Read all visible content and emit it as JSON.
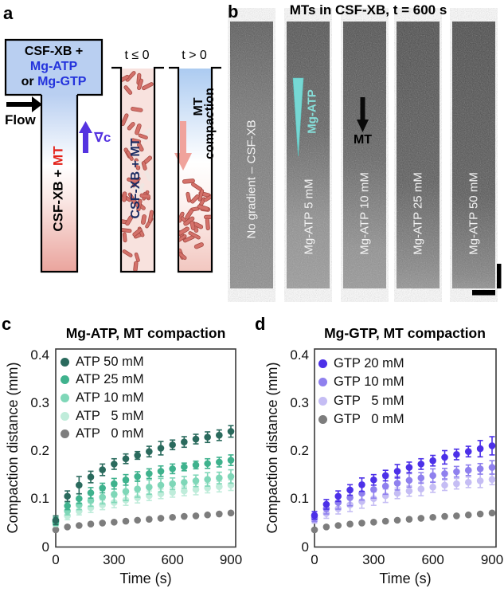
{
  "colors": {
    "reservoir_fill": "#b9cff1",
    "nucleotide_blue": "#2433dc",
    "mt_red": "#e32119",
    "gradient_arrow_violet": "#5533e0",
    "rod_fill": "#d4716a",
    "rod_stroke": "#a54a43",
    "mid_channel_bg": "#f8e2de",
    "mid_label_navy": "#1b2c63",
    "compaction_arrow_pink": "#f0a39c",
    "cyan_annotation": "#76d8d4",
    "strip_label_white": "#f2f2f2"
  },
  "panel_a": {
    "label": "a",
    "reservoir": {
      "line1": "CSF-XB +",
      "line2": "Mg-ATP",
      "line3_prefix": "or ",
      "line3_value": "Mg-GTP"
    },
    "flow_label": "Flow",
    "gradient_label": "∇c",
    "main_channel_prefix": "CSF-XB + ",
    "main_channel_mt": "MT",
    "t_before": "t ≤ 0",
    "t_after": "t > 0",
    "mid_channel_label": "CSF-XB + MT",
    "after_line1": "MT",
    "after_line2": "compaction"
  },
  "panel_b": {
    "label": "b",
    "title": "MTs in CSF-XB, t = 600 s",
    "cyan_label": "Mg-ATP",
    "mt_label": "MT",
    "strips": [
      "No gradient – CSF-XB",
      "Mg-ATP 5 mM",
      "Mg-ATP 10 mM",
      "Mg-ATP 25 mM",
      "Mg-ATP 50 mM"
    ]
  },
  "chart_data": [
    {
      "panel_label": "c",
      "type": "scatter",
      "title": "Mg-ATP, MT compaction",
      "xlabel": "Time (s)",
      "ylabel": "Compaction distance (mm)",
      "x": [
        0,
        60,
        120,
        180,
        240,
        300,
        360,
        420,
        480,
        540,
        600,
        660,
        720,
        780,
        840,
        900
      ],
      "xticks": [
        0,
        300,
        600,
        900
      ],
      "yticks": [
        0,
        0.1,
        0.2,
        0.3,
        0.4
      ],
      "xlim": [
        0,
        925
      ],
      "ylim": [
        0,
        0.412
      ],
      "grid": false,
      "legend_position": "upper-left",
      "series": [
        {
          "name": "ATP 50 mM",
          "color": "#2a6a5d",
          "values": [
            0.055,
            0.105,
            0.128,
            0.145,
            0.16,
            0.172,
            0.183,
            0.19,
            0.198,
            0.205,
            0.212,
            0.218,
            0.224,
            0.228,
            0.232,
            0.24
          ],
          "err": [
            0.009,
            0.011,
            0.018,
            0.012,
            0.012,
            0.011,
            0.01,
            0.008,
            0.011,
            0.014,
            0.01,
            0.011,
            0.01,
            0.011,
            0.011,
            0.012
          ]
        },
        {
          "name": "ATP 25 mM",
          "color": "#3fb28d",
          "values": [
            0.053,
            0.085,
            0.1,
            0.112,
            0.122,
            0.131,
            0.139,
            0.146,
            0.152,
            0.157,
            0.162,
            0.166,
            0.17,
            0.173,
            0.176,
            0.18
          ],
          "err": [
            0.008,
            0.008,
            0.01,
            0.011,
            0.01,
            0.011,
            0.011,
            0.01,
            0.01,
            0.011,
            0.01,
            0.008,
            0.008,
            0.01,
            0.01,
            0.011
          ]
        },
        {
          "name": "ATP 10 mM",
          "color": "#7fd7b8",
          "values": [
            0.05,
            0.074,
            0.087,
            0.096,
            0.103,
            0.109,
            0.115,
            0.12,
            0.124,
            0.128,
            0.131,
            0.134,
            0.137,
            0.14,
            0.143,
            0.146
          ],
          "err": [
            0.006,
            0.008,
            0.01,
            0.012,
            0.014,
            0.017,
            0.019,
            0.017,
            0.015,
            0.014,
            0.012,
            0.012,
            0.012,
            0.014,
            0.012,
            0.014
          ]
        },
        {
          "name": "ATP   5 mM",
          "color": "#bfecda",
          "values": [
            0.048,
            0.064,
            0.074,
            0.081,
            0.087,
            0.092,
            0.097,
            0.102,
            0.106,
            0.11,
            0.113,
            0.116,
            0.119,
            0.122,
            0.125,
            0.128
          ],
          "err": [
            0.006,
            0.008,
            0.008,
            0.01,
            0.01,
            0.011,
            0.011,
            0.011,
            0.01,
            0.01,
            0.01,
            0.01,
            0.011,
            0.01,
            0.011,
            0.011
          ]
        },
        {
          "name": "ATP   0 mM",
          "color": "#7d7d7d",
          "values": [
            0.035,
            0.041,
            0.044,
            0.047,
            0.049,
            0.051,
            0.053,
            0.055,
            0.057,
            0.059,
            0.061,
            0.063,
            0.064,
            0.066,
            0.068,
            0.07
          ],
          "err": [
            0.003,
            0.003,
            0.003,
            0.003,
            0.003,
            0.003,
            0.003,
            0.003,
            0.003,
            0.003,
            0.003,
            0.003,
            0.003,
            0.003,
            0.003,
            0.003
          ]
        }
      ]
    },
    {
      "panel_label": "d",
      "type": "scatter",
      "title": "Mg-GTP, MT compaction",
      "xlabel": "Time (s)",
      "ylabel": "Compaction distance (mm)",
      "x": [
        0,
        60,
        120,
        180,
        240,
        300,
        360,
        420,
        480,
        540,
        600,
        660,
        720,
        780,
        840,
        900
      ],
      "xticks": [
        0,
        300,
        600,
        900
      ],
      "yticks": [
        0,
        0.1,
        0.2,
        0.3,
        0.4
      ],
      "xlim": [
        0,
        925
      ],
      "ylim": [
        0,
        0.412
      ],
      "grid": false,
      "legend_position": "upper-left",
      "series": [
        {
          "name": "GTP 20 mM",
          "color": "#4c30e8",
          "values": [
            0.065,
            0.088,
            0.105,
            0.118,
            0.129,
            0.139,
            0.148,
            0.157,
            0.165,
            0.172,
            0.179,
            0.186,
            0.192,
            0.198,
            0.204,
            0.21
          ],
          "err": [
            0.008,
            0.01,
            0.011,
            0.011,
            0.014,
            0.011,
            0.011,
            0.014,
            0.011,
            0.011,
            0.011,
            0.014,
            0.011,
            0.011,
            0.017,
            0.019
          ]
        },
        {
          "name": "GTP 10 mM",
          "color": "#8f80ee",
          "values": [
            0.06,
            0.079,
            0.092,
            0.102,
            0.111,
            0.119,
            0.126,
            0.132,
            0.138,
            0.143,
            0.148,
            0.152,
            0.156,
            0.159,
            0.162,
            0.165
          ],
          "err": [
            0.008,
            0.011,
            0.014,
            0.017,
            0.014,
            0.018,
            0.017,
            0.014,
            0.014,
            0.011,
            0.014,
            0.011,
            0.011,
            0.011,
            0.011,
            0.014
          ]
        },
        {
          "name": "GTP   5 mM",
          "color": "#c5bdf4",
          "values": [
            0.055,
            0.069,
            0.079,
            0.087,
            0.094,
            0.1,
            0.106,
            0.111,
            0.116,
            0.12,
            0.124,
            0.128,
            0.131,
            0.134,
            0.137,
            0.14
          ],
          "err": [
            0.006,
            0.01,
            0.011,
            0.014,
            0.014,
            0.014,
            0.014,
            0.011,
            0.011,
            0.014,
            0.011,
            0.011,
            0.011,
            0.011,
            0.014,
            0.011
          ]
        },
        {
          "name": "GTP   0 mM",
          "color": "#7d7d7d",
          "values": [
            0.035,
            0.041,
            0.044,
            0.047,
            0.049,
            0.051,
            0.053,
            0.055,
            0.057,
            0.059,
            0.061,
            0.063,
            0.064,
            0.066,
            0.068,
            0.07
          ],
          "err": [
            0.003,
            0.003,
            0.003,
            0.003,
            0.003,
            0.003,
            0.003,
            0.003,
            0.003,
            0.003,
            0.003,
            0.003,
            0.003,
            0.003,
            0.003,
            0.003
          ]
        }
      ]
    }
  ]
}
